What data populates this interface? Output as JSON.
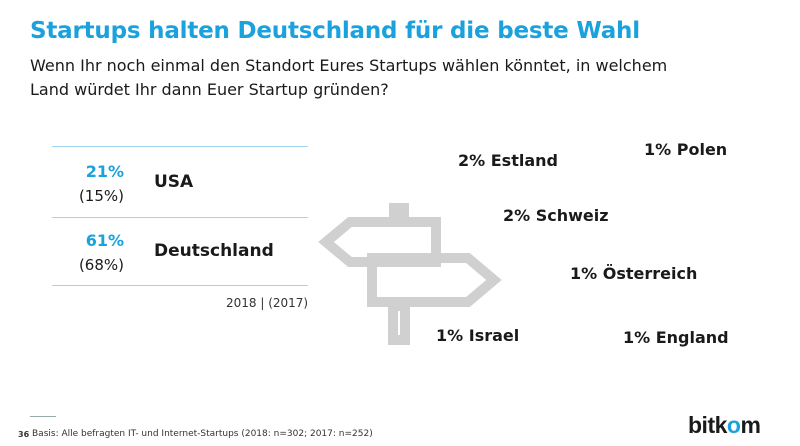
{
  "header": {
    "title": "Startups halten Deutschland für die beste Wahl",
    "subtitle": "Wenn Ihr noch einmal den Standort Eures Startups wählen könntet, in welchem Land würdet Ihr dann Euer Startup gründen?"
  },
  "chart_data": {
    "type": "table",
    "series": [
      {
        "name": "2018",
        "values": [
          21,
          61,
          2,
          2,
          1,
          1,
          1,
          1
        ]
      },
      {
        "name": "2017",
        "values": [
          15,
          68,
          null,
          null,
          null,
          null,
          null,
          null
        ]
      }
    ],
    "categories": [
      "USA",
      "Deutschland",
      "Estland",
      "Schweiz",
      "Polen",
      "Österreich",
      "Israel",
      "England"
    ],
    "main_rows": [
      {
        "country": "USA",
        "pct_2018": "21%",
        "pct_2017": "(15%)"
      },
      {
        "country": "Deutschland",
        "pct_2018": "61%",
        "pct_2017": "(68%)"
      }
    ],
    "others": [
      {
        "label": "2% Estland"
      },
      {
        "label": "1% Polen"
      },
      {
        "label": "2% Schweiz"
      },
      {
        "label": "1% Österreich"
      },
      {
        "label": "1% Israel"
      },
      {
        "label": "1% England"
      }
    ],
    "legend": "2018 | (2017)"
  },
  "footer": {
    "page_number": "36",
    "basis": "Basis: Alle befragten IT- und Internet-Startups (2018: n=302; 2017: n=252)",
    "logo_a": "bitk",
    "logo_b": "o",
    "logo_c": "m"
  },
  "colors": {
    "accent": "#1ba1dc",
    "text": "#1a1a1a",
    "sign": "#d0d0d0"
  },
  "icons": {
    "signpost": "signpost-icon"
  }
}
